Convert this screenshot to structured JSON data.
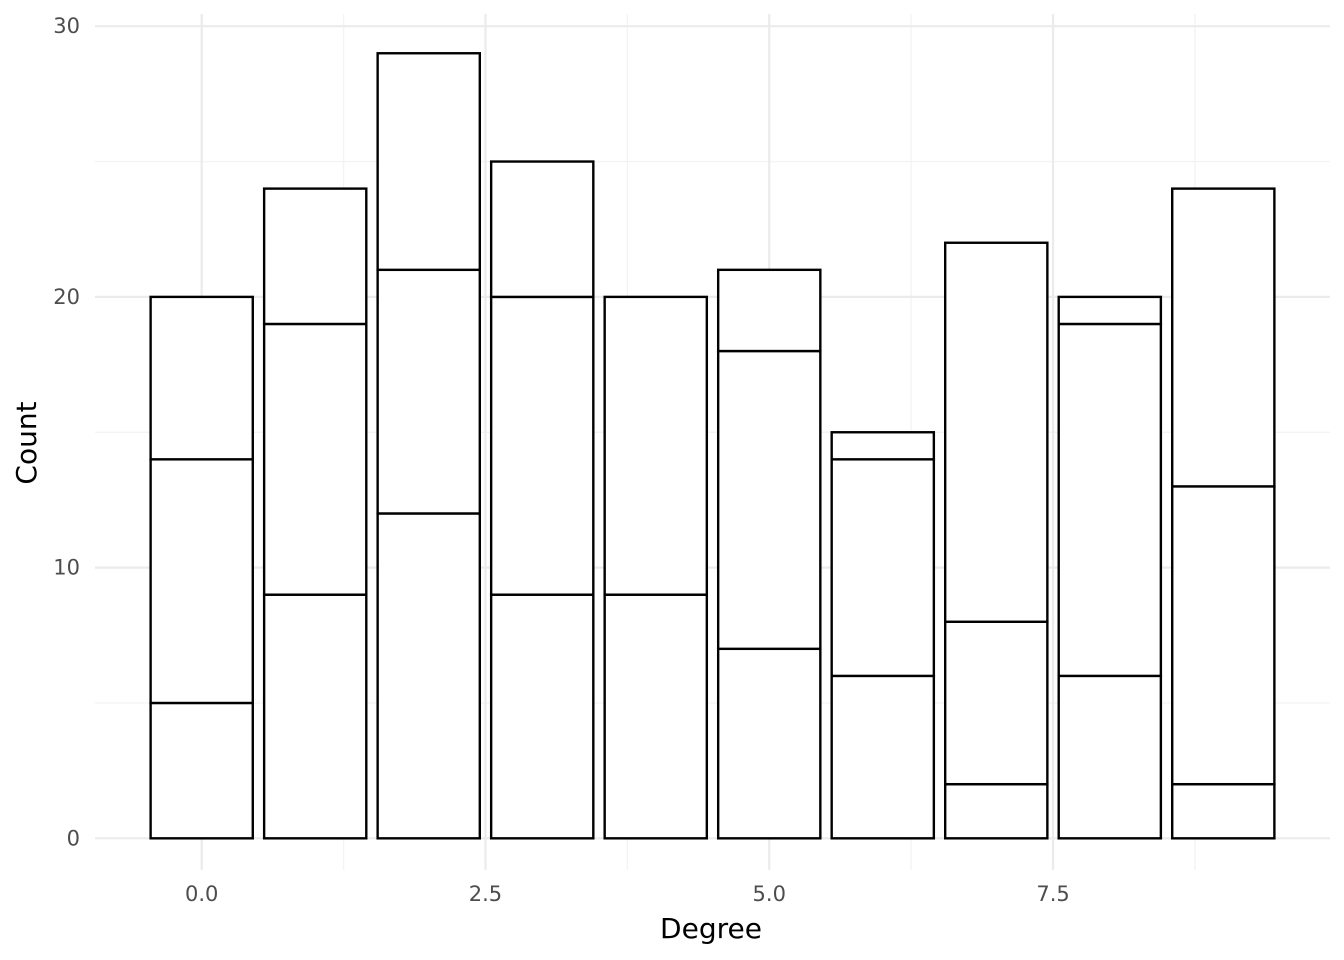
{
  "chart_data": {
    "type": "bar",
    "stacked": true,
    "xlabel": "Degree",
    "ylabel": "Count",
    "x": [
      0,
      1,
      2,
      3,
      4,
      5,
      6,
      7,
      8,
      9
    ],
    "segment_boundaries": [
      [
        0,
        5,
        14,
        20
      ],
      [
        0,
        9,
        19,
        24
      ],
      [
        0,
        12,
        21,
        29
      ],
      [
        0,
        9,
        20,
        25
      ],
      [
        0,
        9,
        20
      ],
      [
        0,
        7,
        18,
        21
      ],
      [
        0,
        6,
        14,
        15
      ],
      [
        0,
        2,
        8,
        22
      ],
      [
        0,
        6,
        19,
        20
      ],
      [
        0,
        2,
        13,
        24
      ]
    ],
    "totals": [
      20,
      24,
      29,
      25,
      20,
      21,
      15,
      22,
      20,
      24
    ],
    "xlim": [
      -0.94,
      9.94
    ],
    "ylim": [
      -1.17,
      30.45
    ],
    "x_ticks": [
      0.0,
      2.5,
      5.0,
      7.5
    ],
    "x_tick_labels": [
      "0.0",
      "2.5",
      "5.0",
      "7.5"
    ],
    "y_ticks": [
      0,
      10,
      20,
      30
    ],
    "y_tick_labels": [
      "0",
      "10",
      "20",
      "30"
    ],
    "bar_width": 0.9,
    "grid": true,
    "legend": "none",
    "colors": {
      "bar_fill": "#ffffff",
      "bar_outline": "#000000",
      "grid": "#ebebeb"
    }
  }
}
